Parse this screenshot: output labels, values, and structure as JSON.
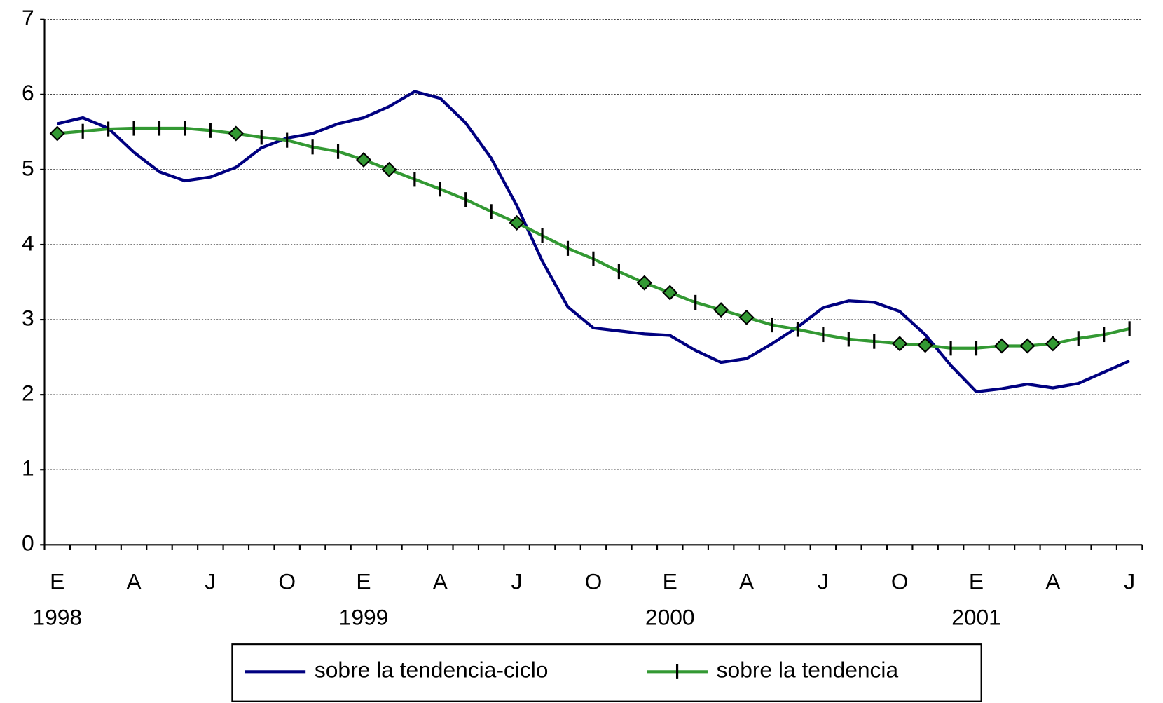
{
  "chart_data": {
    "type": "line",
    "categories": [
      "E",
      null,
      null,
      "A",
      null,
      null,
      "J",
      null,
      null,
      "O",
      null,
      null,
      "E",
      null,
      null,
      "A",
      null,
      null,
      "J",
      null,
      null,
      "O",
      null,
      null,
      "E",
      null,
      null,
      "A",
      null,
      null,
      "J",
      null,
      null,
      "O",
      null,
      null,
      "E",
      null,
      null,
      "A",
      null,
      null,
      "J"
    ],
    "year_labels": [
      "1998",
      null,
      null,
      null,
      null,
      null,
      null,
      null,
      null,
      null,
      null,
      null,
      "1999",
      null,
      null,
      null,
      null,
      null,
      null,
      null,
      null,
      null,
      null,
      null,
      "2000",
      null,
      null,
      null,
      null,
      null,
      null,
      null,
      null,
      null,
      null,
      null,
      "2001",
      null,
      null,
      null,
      null,
      null,
      null
    ],
    "series": [
      {
        "name": "sobre la tendencia-ciclo",
        "color": "#000080",
        "values": [
          5.61,
          5.69,
          5.55,
          5.23,
          4.97,
          4.85,
          4.9,
          5.03,
          5.29,
          5.42,
          5.48,
          5.61,
          5.69,
          5.84,
          6.04,
          5.95,
          5.62,
          5.15,
          4.52,
          3.78,
          3.17,
          2.89,
          2.85,
          2.81,
          2.79,
          2.59,
          2.43,
          2.48,
          2.68,
          2.9,
          3.16,
          3.25,
          3.23,
          3.11,
          2.8,
          2.39,
          2.04,
          2.08,
          2.14,
          2.09,
          2.15,
          2.3,
          2.45
        ]
      },
      {
        "name": "sobre la tendencia",
        "color": "#339933",
        "marker_color": "#339933",
        "legend_marker": "tick",
        "values": [
          5.48,
          5.51,
          5.54,
          5.55,
          5.55,
          5.55,
          5.52,
          5.48,
          5.43,
          5.39,
          5.3,
          5.24,
          5.13,
          5.0,
          4.87,
          4.74,
          4.6,
          4.44,
          4.29,
          4.12,
          3.95,
          3.81,
          3.64,
          3.49,
          3.36,
          3.23,
          3.13,
          3.03,
          2.93,
          2.87,
          2.8,
          2.74,
          2.71,
          2.68,
          2.66,
          2.62,
          2.62,
          2.65,
          2.65,
          2.68,
          2.75,
          2.8,
          2.88
        ],
        "markers": [
          "diamond",
          "tick",
          "tick",
          "tick",
          "tick",
          "tick",
          "tick",
          "diamond",
          "tick",
          "tick",
          "tick",
          "tick",
          "diamond",
          "diamond",
          "tick",
          "tick",
          "tick",
          "tick",
          "diamond",
          "tick",
          "tick",
          "tick",
          "tick",
          "diamond",
          "diamond",
          "tick",
          "diamond",
          "diamond",
          "tick",
          "tick",
          "tick",
          "tick",
          "tick",
          "diamond",
          "diamond",
          "tick",
          "tick",
          "diamond",
          "diamond",
          "diamond",
          "tick",
          "tick",
          "tick"
        ]
      }
    ],
    "ylim": [
      0,
      7
    ],
    "yticks": [
      0,
      1,
      2,
      3,
      4,
      5,
      6,
      7
    ],
    "grid": true,
    "legend": "bottom"
  }
}
